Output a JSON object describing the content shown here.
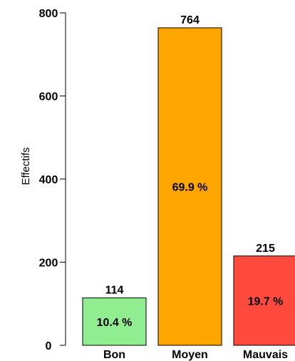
{
  "chart_data": {
    "type": "bar",
    "title": "",
    "xlabel": "",
    "ylabel": "Effectifs",
    "ylim": [
      0,
      800
    ],
    "yticks": [
      0,
      200,
      400,
      600,
      800
    ],
    "grid": false,
    "categories": [
      "Bon",
      "Moyen",
      "Mauvais"
    ],
    "values": [
      114,
      764,
      215
    ],
    "value_labels": [
      "114",
      "764",
      "215"
    ],
    "percent_labels": [
      "10.4 %",
      "69.9 %",
      "19.7 %"
    ],
    "colors": [
      "#90EE90",
      "#FFA500",
      "#FF4A3D"
    ]
  }
}
